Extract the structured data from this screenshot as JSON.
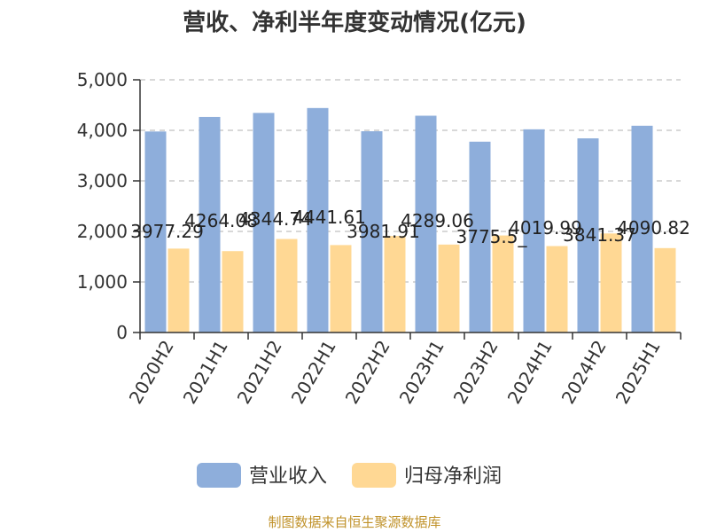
{
  "colors": {
    "revenue": "#8eaedb",
    "profit": "#ffd894",
    "source": "#c0922a",
    "axis": "#333333",
    "grid": "#cccccc"
  },
  "source_text": "制图数据来自恒生聚源数据库",
  "chart_data": {
    "type": "bar",
    "title": "营收、净利半年度变动情况(亿元)",
    "categories": [
      "2020H2",
      "2021H1",
      "2021H2",
      "2022H1",
      "2022H2",
      "2023H1",
      "2023H2",
      "2024H1",
      "2024H2",
      "2025H1"
    ],
    "series": [
      {
        "name": "营业收入",
        "values": [
          3977.29,
          4264.08,
          4344.74,
          4441.61,
          3981.91,
          4289.06,
          3775.51,
          4019.99,
          3841.37,
          4090.82
        ],
        "labels": [
          "3977.29",
          "4264.08",
          "4344.74",
          "4441.61",
          "3981.91",
          "4289.06",
          "3775.5_",
          "4019.99",
          "3841.37",
          "4090.82"
        ]
      },
      {
        "name": "归母净利润",
        "values": [
          1660,
          1610,
          1850,
          1730,
          1910,
          1740,
          1920,
          1710,
          1960,
          1670
        ]
      }
    ],
    "ylim": [
      0,
      5000
    ],
    "yticks": [
      "0",
      "1,000",
      "2,000",
      "3,000",
      "4,000",
      "5,000"
    ],
    "yticks_values": [
      0,
      1000,
      2000,
      3000,
      4000,
      5000
    ],
    "grid": true,
    "legend": "bottom"
  }
}
